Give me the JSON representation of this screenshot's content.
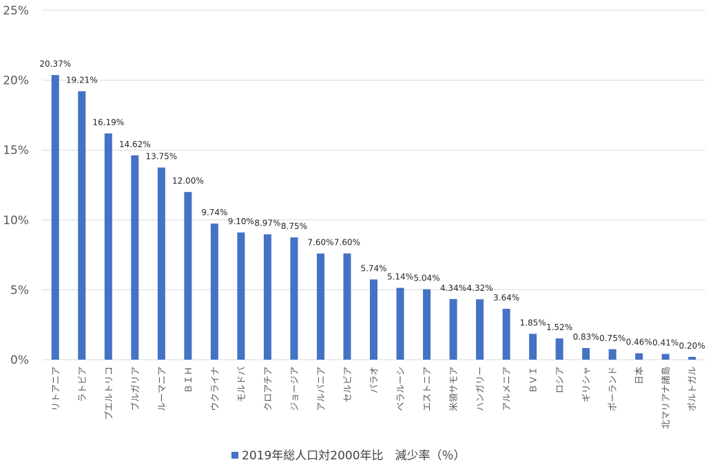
{
  "chart_data": {
    "type": "bar",
    "categories": [
      "リトアニア",
      "ラトビア",
      "プエルトリコ",
      "ブルガリア",
      "ルーマニア",
      "ＢＩＨ",
      "ウクライナ",
      "モルドバ",
      "クロアチア",
      "ジョージア",
      "アルバニア",
      "セルビア",
      "パラオ",
      "ベラルーシ",
      "エストニア",
      "米領サモア",
      "ハンガリー",
      "アルメニア",
      "ＢＶＩ",
      "ロシア",
      "ギリシャ",
      "ポーランド",
      "日本",
      "北マリアナ諸島",
      "ポルトガル"
    ],
    "values": [
      20.37,
      19.21,
      16.19,
      14.62,
      13.75,
      12.0,
      9.74,
      9.1,
      8.97,
      8.75,
      7.6,
      7.6,
      5.74,
      5.14,
      5.04,
      4.34,
      4.32,
      3.64,
      1.85,
      1.52,
      0.83,
      0.75,
      0.46,
      0.41,
      0.2
    ],
    "data_labels": [
      "20.37%",
      "19.21%",
      "16.19%",
      "14.62%",
      "13.75%",
      "12.00%",
      "9.74%",
      "9.10%",
      "8.97%",
      "8.75%",
      "7.60%",
      "7.60%",
      "5.74%",
      "5.14%",
      "5.04%",
      "4.34%",
      "4.32%",
      "3.64%",
      "1.85%",
      "1.52%",
      "0.83%",
      "0.75%",
      "0.46%",
      "0.41%",
      "0.20%"
    ],
    "y_ticks": [
      0,
      5,
      10,
      15,
      20,
      25
    ],
    "y_tick_labels": [
      "0%",
      "5%",
      "10%",
      "15%",
      "20%",
      "25%"
    ],
    "ylim": [
      0,
      25
    ],
    "grid": true,
    "legend_position": "bottom",
    "series": [
      {
        "name": "2019年総人口対2000年比　減少率（％）"
      }
    ],
    "bar_color": "#4472c4"
  }
}
